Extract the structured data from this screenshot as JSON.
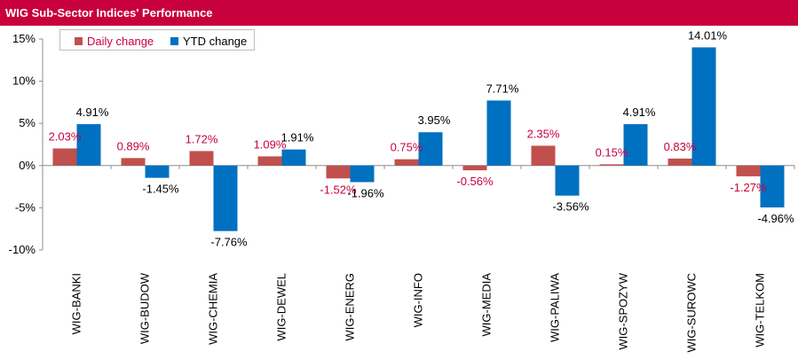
{
  "title": "WIG Sub-Sector Indices' Performance",
  "colors": {
    "title_bar": "#c8003c",
    "daily": "#c0504d",
    "ytd": "#0070c0",
    "daily_label": "#c8003c",
    "ytd_label": "#000000"
  },
  "chart_data": {
    "type": "bar",
    "categories": [
      "WIG-BANKI",
      "WIG-BUDOW",
      "WIG-CHEMIA",
      "WIG-DEWEL",
      "WIG-ENERG",
      "WIG-INFO",
      "WIG-MEDIA",
      "WIG-PALIWA",
      "WIG-SPOZYW",
      "WIG-SUROWC",
      "WIG-TELKOM"
    ],
    "series": [
      {
        "name": "Daily change",
        "values": [
          2.03,
          0.89,
          1.72,
          1.09,
          -1.52,
          0.75,
          -0.56,
          2.35,
          0.15,
          0.83,
          -1.27
        ],
        "labels": [
          "2.03%",
          "0.89%",
          "1.72%",
          "1.09%",
          "-1.52%",
          "0.75%",
          "-0.56%",
          "2.35%",
          "0.15%",
          "0.83%",
          "-1.27%"
        ]
      },
      {
        "name": "YTD change",
        "values": [
          4.91,
          -1.45,
          -7.76,
          1.91,
          -1.96,
          3.95,
          7.71,
          -3.56,
          4.91,
          14.01,
          -4.96
        ],
        "labels": [
          "4.91%",
          "-1.45%",
          "-7.76%",
          "1.91%",
          "-1.96%",
          "3.95%",
          "7.71%",
          "-3.56%",
          "4.91%",
          "14.01%",
          "-4.96%"
        ]
      }
    ],
    "yticks": [
      15,
      10,
      5,
      0,
      -5,
      -10
    ],
    "ytick_labels": [
      "15%",
      "10%",
      "5%",
      "0%",
      "-5%",
      "-10%"
    ],
    "ylim": [
      -10,
      15
    ],
    "legend_position": "top-left",
    "grid": false
  }
}
